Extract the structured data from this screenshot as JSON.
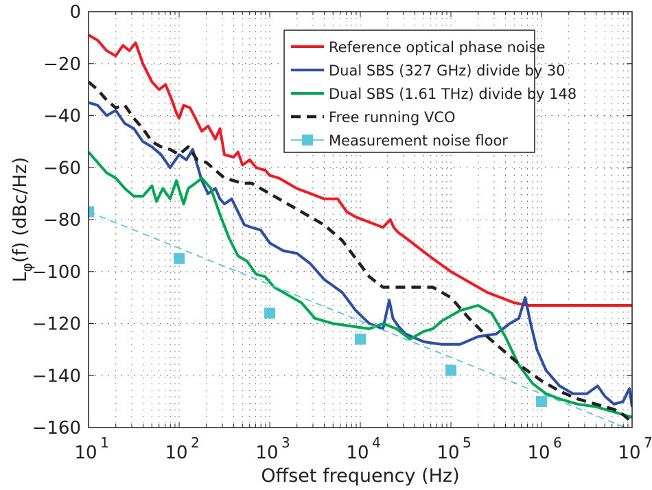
{
  "chart_data": {
    "type": "line",
    "title": "",
    "xlabel": "Offset frequency (Hz)",
    "ylabel": "Lφ(f) (dBc/Hz)",
    "ylabel_main": "L",
    "ylabel_sub": "φ",
    "ylabel_rest": "(f) (dBc/Hz)",
    "xscale": "log",
    "xlim": [
      10,
      10000000
    ],
    "ylim": [
      -160,
      0
    ],
    "grid": true,
    "grid_style": "dotted",
    "legend_position": "top-right",
    "x_ticks": [
      {
        "base": "10",
        "exp": "1",
        "value": 10
      },
      {
        "base": "10",
        "exp": "2",
        "value": 100
      },
      {
        "base": "10",
        "exp": "3",
        "value": 1000
      },
      {
        "base": "10",
        "exp": "4",
        "value": 10000
      },
      {
        "base": "10",
        "exp": "5",
        "value": 100000
      },
      {
        "base": "10",
        "exp": "6",
        "value": 1000000
      },
      {
        "base": "10",
        "exp": "7",
        "value": 10000000
      }
    ],
    "y_ticks": [
      {
        "label": "0",
        "value": 0
      },
      {
        "label": "−20",
        "value": -20
      },
      {
        "label": "−40",
        "value": -40
      },
      {
        "label": "−60",
        "value": -60
      },
      {
        "label": "−80",
        "value": -80
      },
      {
        "label": "−100",
        "value": -100
      },
      {
        "label": "−120",
        "value": -120
      },
      {
        "label": "−140",
        "value": -140
      },
      {
        "label": "−160",
        "value": -160
      }
    ],
    "series": [
      {
        "name": "Reference optical phase noise",
        "color": "#ed1c24",
        "style": "solid",
        "log10_x": [
          1.0,
          1.1,
          1.2,
          1.3,
          1.38,
          1.45,
          1.52,
          1.6,
          1.7,
          1.78,
          1.85,
          1.92,
          1.97,
          2.0,
          2.05,
          2.12,
          2.18,
          2.25,
          2.32,
          2.4,
          2.45,
          2.5,
          2.6,
          2.65,
          2.7,
          2.78,
          2.85,
          2.95,
          3.0,
          3.1,
          3.2,
          3.3,
          3.45,
          3.6,
          3.75,
          3.85,
          3.95,
          4.1,
          4.25,
          4.33,
          4.37,
          4.42,
          4.5,
          4.65,
          4.8,
          5.0,
          5.2,
          5.4,
          5.55,
          5.7,
          5.85,
          6.0,
          6.3,
          6.6,
          6.9,
          7.0
        ],
        "values": [
          -9,
          -11,
          -15,
          -17,
          -13,
          -15,
          -12,
          -20,
          -27,
          -30,
          -28,
          -34,
          -39,
          -41,
          -36,
          -37,
          -41,
          -46,
          -44,
          -49,
          -45,
          -55,
          -56,
          -54,
          -59,
          -57,
          -60,
          -61,
          -63,
          -64,
          -66,
          -68,
          -70,
          -72,
          -72,
          -77,
          -79,
          -81,
          -83,
          -80,
          -83,
          -85,
          -87,
          -91,
          -95,
          -100,
          -104,
          -108,
          -110,
          -112,
          -113,
          -113,
          -113,
          -113,
          -113,
          -113
        ]
      },
      {
        "name": "Dual SBS (327 GHz) divide  by 30",
        "color": "#2e4fa3",
        "style": "solid",
        "log10_x": [
          1.0,
          1.1,
          1.2,
          1.3,
          1.4,
          1.5,
          1.6,
          1.7,
          1.8,
          1.9,
          2.0,
          2.08,
          2.15,
          2.25,
          2.32,
          2.4,
          2.45,
          2.5,
          2.58,
          2.65,
          2.72,
          2.8,
          2.9,
          3.0,
          3.15,
          3.3,
          3.45,
          3.6,
          3.8,
          3.95,
          4.1,
          4.25,
          4.32,
          4.36,
          4.42,
          4.5,
          4.7,
          4.9,
          5.1,
          5.3,
          5.5,
          5.65,
          5.75,
          5.82,
          5.88,
          5.95,
          6.05,
          6.2,
          6.35,
          6.5,
          6.62,
          6.7,
          6.8,
          6.9,
          6.97,
          7.0
        ],
        "values": [
          -35,
          -36,
          -40,
          -38,
          -43,
          -45,
          -50,
          -52,
          -55,
          -60,
          -55,
          -57,
          -53,
          -65,
          -70,
          -68,
          -72,
          -74,
          -72,
          -77,
          -82,
          -83,
          -84,
          -89,
          -92,
          -93,
          -97,
          -103,
          -108,
          -115,
          -120,
          -122,
          -111,
          -118,
          -121,
          -124,
          -127,
          -128,
          -128,
          -125,
          -124,
          -120,
          -118,
          -110,
          -120,
          -130,
          -138,
          -144,
          -147,
          -147,
          -144,
          -148,
          -151,
          -150,
          -145,
          -152
        ]
      },
      {
        "name": "Dual SBS (1.61 THz) divide  by 148",
        "color": "#00a651",
        "style": "solid",
        "log10_x": [
          1.0,
          1.1,
          1.2,
          1.3,
          1.4,
          1.5,
          1.6,
          1.7,
          1.75,
          1.82,
          1.9,
          1.97,
          2.05,
          2.1,
          2.18,
          2.25,
          2.35,
          2.45,
          2.55,
          2.65,
          2.75,
          2.85,
          2.95,
          3.05,
          3.2,
          3.35,
          3.5,
          3.7,
          3.9,
          4.1,
          4.25,
          4.4,
          4.55,
          4.7,
          4.8,
          4.9,
          5.0,
          5.1,
          5.2,
          5.3,
          5.45,
          5.6,
          5.75,
          5.9,
          6.05,
          6.2,
          6.4,
          6.6,
          6.8,
          7.0
        ],
        "values": [
          -54,
          -58,
          -62,
          -64,
          -68,
          -71,
          -71,
          -67,
          -73,
          -68,
          -72,
          -65,
          -74,
          -68,
          -66,
          -64,
          -68,
          -78,
          -87,
          -94,
          -96,
          -101,
          -102,
          -106,
          -109,
          -112,
          -118,
          -120,
          -121,
          -122,
          -120,
          -122,
          -126,
          -123,
          -122,
          -119,
          -117,
          -115,
          -114,
          -113,
          -116,
          -125,
          -136,
          -143,
          -147,
          -149,
          -151,
          -152,
          -154,
          -156
        ]
      },
      {
        "name": "Free running VCO",
        "color": "#231f20",
        "style": "dashed",
        "log10_x": [
          1.0,
          1.1,
          1.2,
          1.3,
          1.4,
          1.5,
          1.6,
          1.7,
          1.8,
          1.9,
          2.0,
          2.1,
          2.2,
          2.3,
          2.4,
          2.5,
          2.6,
          2.7,
          2.8,
          2.9,
          3.0,
          3.2,
          3.4,
          3.6,
          3.8,
          3.95,
          4.1,
          4.25,
          4.4,
          4.6,
          4.8,
          5.0,
          5.2,
          5.4,
          5.6,
          5.8,
          6.0,
          6.2,
          6.4,
          6.6,
          6.8,
          6.9,
          7.0
        ],
        "values": [
          -27,
          -30,
          -34,
          -37,
          -36,
          -41,
          -45,
          -50,
          -52,
          -53,
          -55,
          -52,
          -57,
          -58,
          -61,
          -64,
          -65,
          -66,
          -66,
          -68,
          -70,
          -74,
          -78,
          -82,
          -88,
          -95,
          -102,
          -106,
          -106,
          -106,
          -106,
          -110,
          -118,
          -125,
          -131,
          -137,
          -142,
          -146,
          -149,
          -151,
          -153,
          -155,
          -158
        ]
      },
      {
        "name": "Measurement  noise floor",
        "color": "#5bc5d9",
        "style": "dashed-with-square-markers",
        "log10_x": [
          1.0,
          7.0
        ],
        "values": [
          -77,
          -161
        ],
        "marker_log10_x": [
          1,
          2,
          3,
          4,
          5,
          6
        ],
        "marker_values": [
          -77,
          -95,
          -116,
          -126,
          -138,
          -150
        ]
      }
    ]
  }
}
